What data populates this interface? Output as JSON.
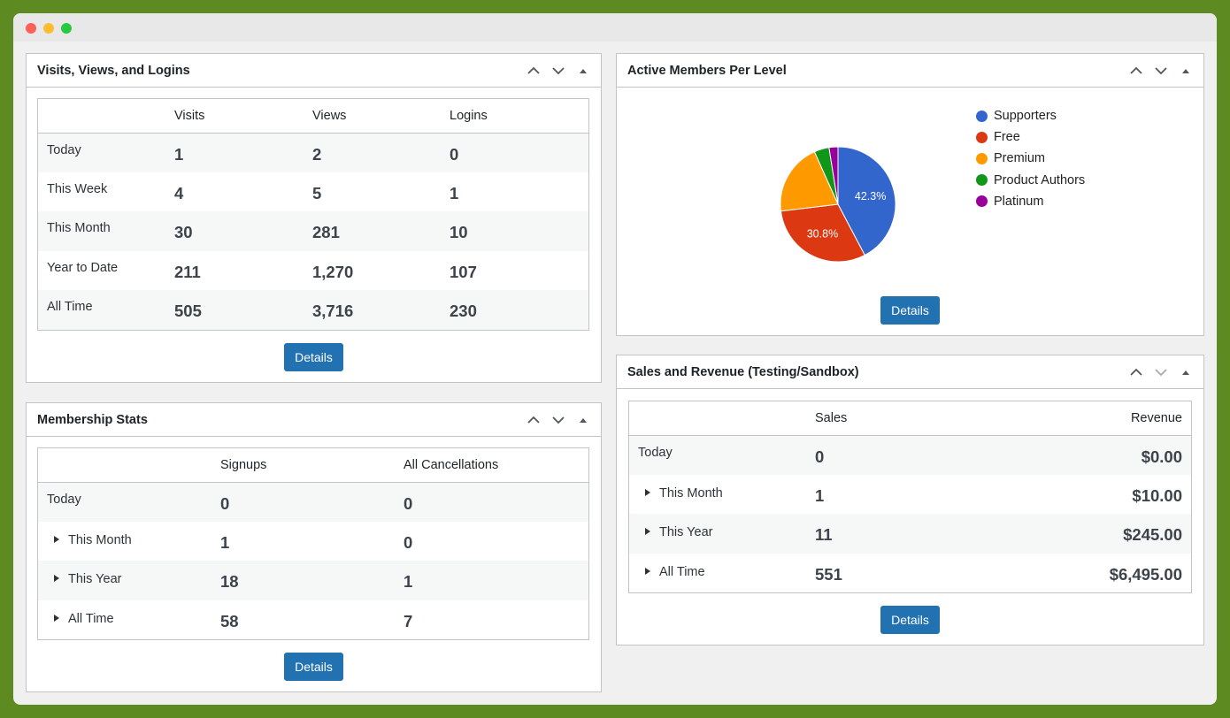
{
  "visits_widget": {
    "title": "Visits, Views, and Logins",
    "columns": [
      "",
      "Visits",
      "Views",
      "Logins"
    ],
    "rows": [
      {
        "label": "Today",
        "values": [
          "1",
          "2",
          "0"
        ]
      },
      {
        "label": "This Week",
        "values": [
          "4",
          "5",
          "1"
        ]
      },
      {
        "label": "This Month",
        "values": [
          "30",
          "281",
          "10"
        ]
      },
      {
        "label": "Year to Date",
        "values": [
          "211",
          "1,270",
          "107"
        ]
      },
      {
        "label": "All Time",
        "values": [
          "505",
          "3,716",
          "230"
        ]
      }
    ],
    "details_label": "Details"
  },
  "membership_widget": {
    "title": "Membership Stats",
    "columns": [
      "",
      "Signups",
      "All Cancellations"
    ],
    "rows": [
      {
        "label": "Today",
        "values": [
          "0",
          "0"
        ]
      },
      {
        "label": "This Month",
        "values": [
          "1",
          "0"
        ]
      },
      {
        "label": "This Year",
        "values": [
          "18",
          "1"
        ]
      },
      {
        "label": "All Time",
        "values": [
          "58",
          "7"
        ]
      }
    ],
    "details_label": "Details"
  },
  "members_widget": {
    "title": "Active Members Per Level",
    "details_label": "Details",
    "slice_labels": [
      "42.3%",
      "30.8%"
    ]
  },
  "sales_widget": {
    "title": "Sales and Revenue (Testing/Sandbox)",
    "columns": [
      "",
      "Sales",
      "Revenue"
    ],
    "rows": [
      {
        "label": "Today",
        "values": [
          "0",
          "$0.00"
        ]
      },
      {
        "label": "This Month",
        "values": [
          "1",
          "$10.00"
        ]
      },
      {
        "label": "This Year",
        "values": [
          "11",
          "$245.00"
        ]
      },
      {
        "label": "All Time",
        "values": [
          "551",
          "$6,495.00"
        ]
      }
    ],
    "details_label": "Details"
  },
  "chart_data": {
    "type": "pie",
    "title": "",
    "categories": [
      "Supporters",
      "Free",
      "Premium",
      "Product Authors",
      "Platinum"
    ],
    "values": [
      42.3,
      30.8,
      20.2,
      4.2,
      2.5
    ],
    "colors": [
      "#3366cc",
      "#dc3912",
      "#ff9900",
      "#109618",
      "#990099"
    ],
    "data_labels": [
      "42.3%",
      "30.8%",
      "",
      "",
      ""
    ],
    "legend": "right"
  },
  "icons": {
    "move_up": "chevron-up-icon",
    "move_down": "chevron-down-icon",
    "toggle": "triangle-up-icon",
    "expand": "triangle-right-icon"
  },
  "colors": {
    "background": "#5e8a22",
    "button": "#2271b1"
  }
}
